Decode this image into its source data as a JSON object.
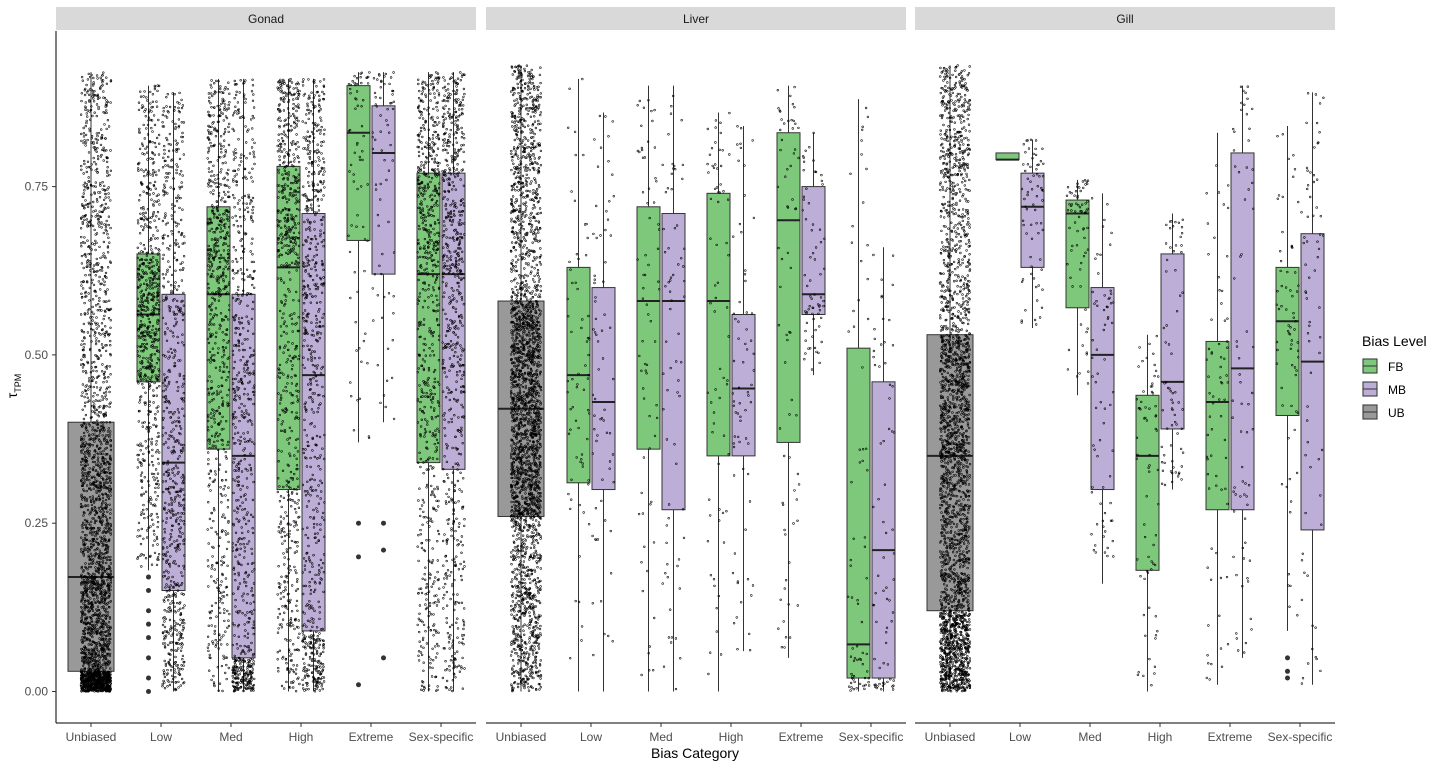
{
  "chart_data": {
    "type": "boxplot",
    "title": "",
    "xlabel": "Bias Category",
    "ylabel": "τ",
    "ylabel_subscript": "TPM",
    "ylim": [
      0,
      0.93
    ],
    "y_ticks": [
      0.0,
      0.25,
      0.5,
      0.75
    ],
    "y_tick_labels": [
      "0.00",
      "0.25",
      "0.50",
      "0.75"
    ],
    "categories": [
      "Unbiased",
      "Low",
      "Med",
      "High",
      "Extreme",
      "Sex-specific"
    ],
    "legend": {
      "title": "Bias Level",
      "position": "right",
      "entries": [
        {
          "label": "FB",
          "color": "#7dc87b"
        },
        {
          "label": "MB",
          "color": "#bcaed6"
        },
        {
          "label": "UB",
          "color": "#999999"
        }
      ]
    },
    "panels": [
      {
        "name": "Gonad",
        "boxes": [
          {
            "category": "Unbiased",
            "group": "UB",
            "q1": 0.03,
            "median": 0.17,
            "q3": 0.4,
            "whisker_low": 0.0,
            "whisker_high": 0.92,
            "outliers": [],
            "density": "high"
          },
          {
            "category": "Low",
            "group": "FB",
            "q1": 0.46,
            "median": 0.56,
            "q3": 0.65,
            "whisker_low": 0.18,
            "whisker_high": 0.9,
            "outliers": [
              0.0,
              0.02,
              0.05,
              0.08,
              0.1,
              0.12,
              0.15,
              0.17
            ],
            "density": "med"
          },
          {
            "category": "Low",
            "group": "MB",
            "q1": 0.15,
            "median": 0.34,
            "q3": 0.59,
            "whisker_low": 0.0,
            "whisker_high": 0.89,
            "outliers": [],
            "density": "med"
          },
          {
            "category": "Med",
            "group": "FB",
            "q1": 0.36,
            "median": 0.59,
            "q3": 0.72,
            "whisker_low": 0.0,
            "whisker_high": 0.91,
            "outliers": [],
            "density": "med"
          },
          {
            "category": "Med",
            "group": "MB",
            "q1": 0.05,
            "median": 0.35,
            "q3": 0.59,
            "whisker_low": 0.0,
            "whisker_high": 0.91,
            "outliers": [],
            "density": "med"
          },
          {
            "category": "High",
            "group": "FB",
            "q1": 0.3,
            "median": 0.63,
            "q3": 0.78,
            "whisker_low": 0.0,
            "whisker_high": 0.91,
            "outliers": [],
            "density": "med"
          },
          {
            "category": "High",
            "group": "MB",
            "q1": 0.09,
            "median": 0.47,
            "q3": 0.71,
            "whisker_low": 0.0,
            "whisker_high": 0.91,
            "outliers": [],
            "density": "med"
          },
          {
            "category": "Extreme",
            "group": "FB",
            "q1": 0.67,
            "median": 0.83,
            "q3": 0.9,
            "whisker_low": 0.37,
            "whisker_high": 0.92,
            "outliers": [
              0.25,
              0.2,
              0.01
            ],
            "density": "low"
          },
          {
            "category": "Extreme",
            "group": "MB",
            "q1": 0.62,
            "median": 0.8,
            "q3": 0.87,
            "whisker_low": 0.4,
            "whisker_high": 0.92,
            "outliers": [
              0.25,
              0.21,
              0.05
            ],
            "density": "low"
          },
          {
            "category": "Sex-specific",
            "group": "FB",
            "q1": 0.34,
            "median": 0.62,
            "q3": 0.77,
            "whisker_low": 0.0,
            "whisker_high": 0.92,
            "outliers": [],
            "density": "med"
          },
          {
            "category": "Sex-specific",
            "group": "MB",
            "q1": 0.33,
            "median": 0.62,
            "q3": 0.77,
            "whisker_low": 0.0,
            "whisker_high": 0.92,
            "outliers": [],
            "density": "med"
          }
        ]
      },
      {
        "name": "Liver",
        "boxes": [
          {
            "category": "Unbiased",
            "group": "UB",
            "q1": 0.26,
            "median": 0.42,
            "q3": 0.58,
            "whisker_low": 0.0,
            "whisker_high": 0.93,
            "outliers": [],
            "density": "high"
          },
          {
            "category": "Low",
            "group": "FB",
            "q1": 0.31,
            "median": 0.47,
            "q3": 0.63,
            "whisker_low": 0.0,
            "whisker_high": 0.91,
            "outliers": [],
            "density": "low"
          },
          {
            "category": "Low",
            "group": "MB",
            "q1": 0.3,
            "median": 0.43,
            "q3": 0.6,
            "whisker_low": 0.0,
            "whisker_high": 0.86,
            "outliers": [],
            "density": "low"
          },
          {
            "category": "Med",
            "group": "FB",
            "q1": 0.36,
            "median": 0.58,
            "q3": 0.72,
            "whisker_low": 0.0,
            "whisker_high": 0.9,
            "outliers": [],
            "density": "low"
          },
          {
            "category": "Med",
            "group": "MB",
            "q1": 0.27,
            "median": 0.58,
            "q3": 0.71,
            "whisker_low": 0.0,
            "whisker_high": 0.9,
            "outliers": [],
            "density": "low"
          },
          {
            "category": "High",
            "group": "FB",
            "q1": 0.35,
            "median": 0.58,
            "q3": 0.74,
            "whisker_low": 0.0,
            "whisker_high": 0.86,
            "outliers": [],
            "density": "low"
          },
          {
            "category": "High",
            "group": "MB",
            "q1": 0.35,
            "median": 0.45,
            "q3": 0.56,
            "whisker_low": 0.06,
            "whisker_high": 0.84,
            "outliers": [],
            "density": "low"
          },
          {
            "category": "Extreme",
            "group": "FB",
            "q1": 0.37,
            "median": 0.7,
            "q3": 0.83,
            "whisker_low": 0.05,
            "whisker_high": 0.9,
            "outliers": [],
            "density": "low"
          },
          {
            "category": "Extreme",
            "group": "MB",
            "q1": 0.56,
            "median": 0.59,
            "q3": 0.75,
            "whisker_low": 0.47,
            "whisker_high": 0.83,
            "outliers": [],
            "density": "low"
          },
          {
            "category": "Sex-specific",
            "group": "FB",
            "q1": 0.02,
            "median": 0.07,
            "q3": 0.51,
            "whisker_low": 0.0,
            "whisker_high": 0.88,
            "outliers": [],
            "density": "low"
          },
          {
            "category": "Sex-specific",
            "group": "MB",
            "q1": 0.02,
            "median": 0.21,
            "q3": 0.46,
            "whisker_low": 0.0,
            "whisker_high": 0.66,
            "outliers": [],
            "density": "low"
          }
        ]
      },
      {
        "name": "Gill",
        "boxes": [
          {
            "category": "Unbiased",
            "group": "UB",
            "q1": 0.12,
            "median": 0.35,
            "q3": 0.53,
            "whisker_low": 0.0,
            "whisker_high": 0.93,
            "outliers": [],
            "density": "high"
          },
          {
            "category": "Low",
            "group": "FB",
            "q1": 0.79,
            "median": 0.79,
            "q3": 0.8,
            "whisker_low": 0.79,
            "whisker_high": 0.8,
            "outliers": [],
            "density": "none"
          },
          {
            "category": "Low",
            "group": "MB",
            "q1": 0.63,
            "median": 0.72,
            "q3": 0.77,
            "whisker_low": 0.54,
            "whisker_high": 0.82,
            "outliers": [],
            "density": "low"
          },
          {
            "category": "Med",
            "group": "FB",
            "q1": 0.57,
            "median": 0.71,
            "q3": 0.73,
            "whisker_low": 0.44,
            "whisker_high": 0.76,
            "outliers": [],
            "density": "low"
          },
          {
            "category": "Med",
            "group": "MB",
            "q1": 0.3,
            "median": 0.5,
            "q3": 0.6,
            "whisker_low": 0.16,
            "whisker_high": 0.74,
            "outliers": [],
            "density": "low"
          },
          {
            "category": "High",
            "group": "FB",
            "q1": 0.18,
            "median": 0.35,
            "q3": 0.44,
            "whisker_low": 0.0,
            "whisker_high": 0.53,
            "outliers": [],
            "density": "low"
          },
          {
            "category": "High",
            "group": "MB",
            "q1": 0.39,
            "median": 0.46,
            "q3": 0.65,
            "whisker_low": 0.3,
            "whisker_high": 0.71,
            "outliers": [],
            "density": "low"
          },
          {
            "category": "Extreme",
            "group": "FB",
            "q1": 0.27,
            "median": 0.43,
            "q3": 0.52,
            "whisker_low": 0.01,
            "whisker_high": 0.83,
            "outliers": [],
            "density": "low"
          },
          {
            "category": "Extreme",
            "group": "MB",
            "q1": 0.27,
            "median": 0.48,
            "q3": 0.8,
            "whisker_low": 0.05,
            "whisker_high": 0.9,
            "outliers": [],
            "density": "low"
          },
          {
            "category": "Sex-specific",
            "group": "FB",
            "q1": 0.41,
            "median": 0.55,
            "q3": 0.63,
            "whisker_low": 0.09,
            "whisker_high": 0.84,
            "outliers": [
              0.05,
              0.03,
              0.02
            ],
            "density": "low"
          },
          {
            "category": "Sex-specific",
            "group": "MB",
            "q1": 0.24,
            "median": 0.49,
            "q3": 0.68,
            "whisker_low": 0.01,
            "whisker_high": 0.89,
            "outliers": [],
            "density": "low"
          }
        ]
      }
    ]
  }
}
